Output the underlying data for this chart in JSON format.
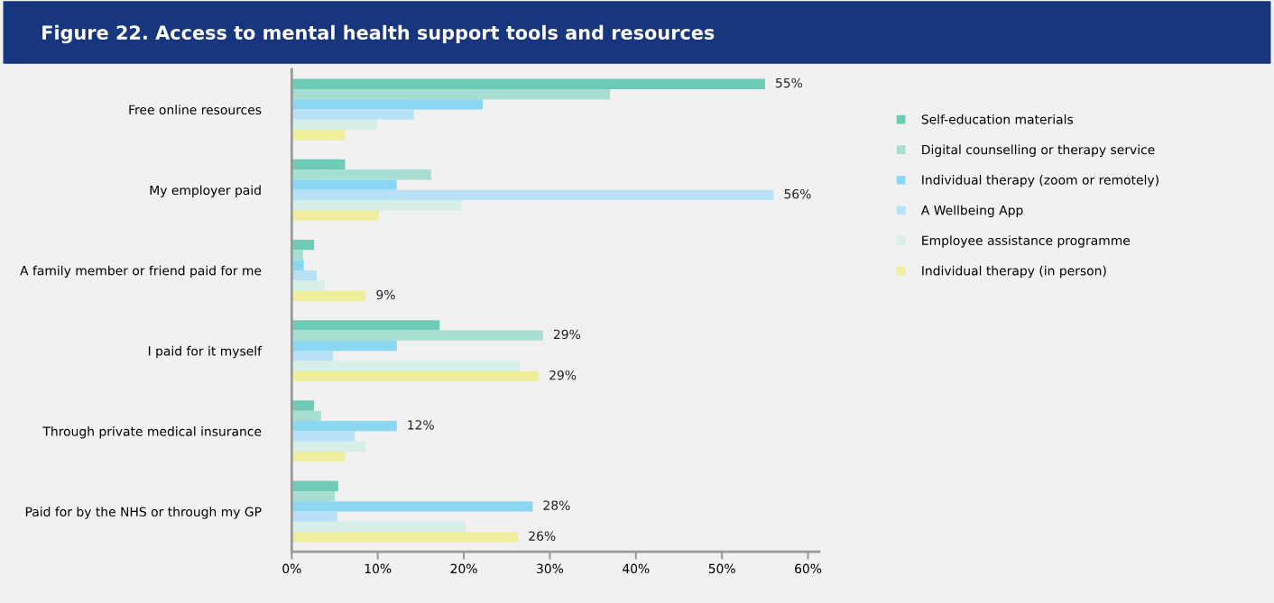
{
  "chart_data": {
    "type": "bar",
    "orientation": "horizontal",
    "title": "Figure 22. Access to mental health support tools and resources",
    "categories": [
      "Free online resources",
      "My employer paid",
      "A family member or friend paid for me",
      "I paid for it myself",
      "Through private medical insurance",
      "Paid for by the NHS or through my GP"
    ],
    "series": [
      {
        "name": "Self-education materials",
        "color": "#6fcbb6",
        "values": [
          55,
          6.2,
          2.6,
          17.2,
          2.6,
          5.4
        ],
        "value_labels": [
          "55%",
          null,
          null,
          null,
          null,
          null
        ]
      },
      {
        "name": "Digital counselling or therapy service",
        "color": "#a8ddd1",
        "values": [
          37.0,
          16.2,
          1.3,
          29.2,
          3.4,
          5.0
        ],
        "value_labels": [
          null,
          null,
          null,
          "29%",
          null,
          null
        ]
      },
      {
        "name": "Individual therapy (zoom or remotely)",
        "color": "#8ad7f2",
        "values": [
          22.2,
          12.2,
          1.4,
          12.2,
          12.2,
          28.0
        ],
        "value_labels": [
          null,
          null,
          null,
          null,
          "12%",
          "28%"
        ]
      },
      {
        "name": "A Wellbeing App",
        "color": "#b8e1f5",
        "values": [
          14.2,
          56,
          2.9,
          4.8,
          7.3,
          5.3
        ],
        "value_labels": [
          null,
          "56%",
          null,
          null,
          null,
          null
        ]
      },
      {
        "name": "Employee assistance programme",
        "color": "#d6efe9",
        "values": [
          9.9,
          19.7,
          3.8,
          26.5,
          8.6,
          20.2
        ]
      },
      {
        "name": "Individual therapy (in person)",
        "color": "#eeee9c",
        "values": [
          6.2,
          10.1,
          8.6,
          28.7,
          6.2,
          26.3
        ],
        "value_labels": [
          null,
          null,
          "9%",
          "29%",
          null,
          "26%"
        ]
      }
    ],
    "xlim": [
      0,
      61.3
    ],
    "xticks": [
      {
        "value": 0,
        "label": "0%"
      },
      {
        "value": 10,
        "label": "10%"
      },
      {
        "value": 20,
        "label": "20%"
      },
      {
        "value": 30,
        "label": "30%"
      },
      {
        "value": 40,
        "label": "40%"
      },
      {
        "value": 50,
        "label": "50%"
      },
      {
        "value": 60,
        "label": "60%"
      }
    ],
    "grid": false,
    "legend": "right",
    "marker": "square"
  }
}
